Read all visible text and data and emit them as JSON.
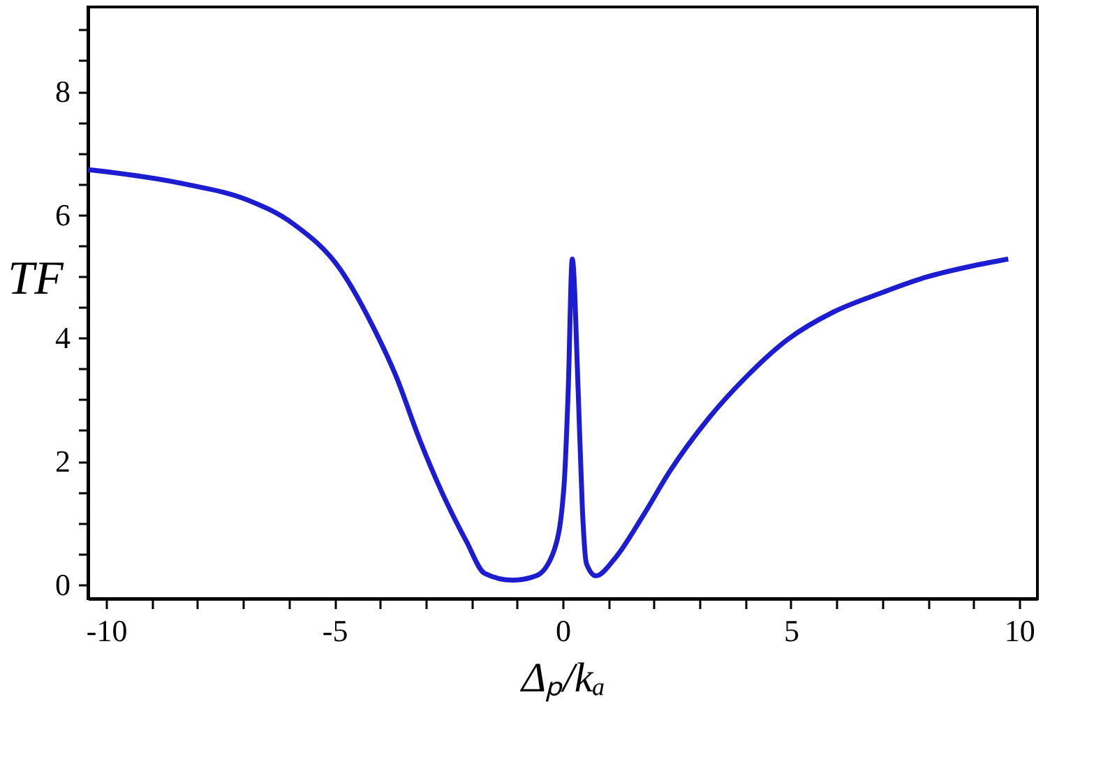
{
  "chart_data": {
    "type": "line",
    "xlabel": "Δₚ/kₐ",
    "ylabel": "TF",
    "xlim": [
      -10.4,
      10.4
    ],
    "ylim": [
      -0.23,
      9.37
    ],
    "xticks": [
      -10,
      {
        "value": -9,
        "label": null
      },
      {
        "value": -8,
        "label": null
      },
      {
        "value": -7,
        "label": null
      },
      {
        "value": -6,
        "label": null
      },
      -5,
      {
        "value": -4,
        "label": null
      },
      {
        "value": -3,
        "label": null
      },
      {
        "value": -2,
        "label": null
      },
      {
        "value": -1,
        "label": null
      },
      0,
      {
        "value": 1,
        "label": null
      },
      {
        "value": 2,
        "label": null
      },
      {
        "value": 3,
        "label": null
      },
      {
        "value": 4,
        "label": null
      },
      5,
      {
        "value": 6,
        "label": null
      },
      {
        "value": 7,
        "label": null
      },
      {
        "value": 8,
        "label": null
      },
      {
        "value": 9,
        "label": null
      },
      10
    ],
    "yticks": [
      0,
      {
        "value": 0.5,
        "label": null
      },
      {
        "value": 1,
        "label": null
      },
      {
        "value": 1.5,
        "label": null
      },
      2,
      {
        "value": 2.5,
        "label": null
      },
      {
        "value": 3,
        "label": null
      },
      {
        "value": 3.5,
        "label": null
      },
      4,
      {
        "value": 4.5,
        "label": null
      },
      {
        "value": 5,
        "label": null
      },
      {
        "value": 5.5,
        "label": null
      },
      6,
      {
        "value": 6.5,
        "label": null
      },
      {
        "value": 7,
        "label": null
      },
      {
        "value": 7.5,
        "label": null
      },
      8,
      {
        "value": 8.5,
        "label": null
      },
      {
        "value": 9,
        "label": null
      }
    ],
    "grid": false,
    "marker": "none",
    "line_style": "solid",
    "series": [
      {
        "color": "#1c1cd0",
        "x": [
          -10.4,
          -10.28,
          -8.23,
          -6.91,
          -5.9,
          -4.86,
          -4.16,
          -3.64,
          -3.15,
          -2.63,
          -2.11,
          -1.71,
          -1.1,
          -0.58,
          -0.18,
          0.03,
          0.12,
          0.21,
          0.34,
          0.43,
          0.52,
          0.73,
          1.13,
          1.74,
          2.35,
          3.18,
          4.01,
          4.92,
          5.93,
          6.94,
          7.98,
          8.99,
          9.76
        ],
        "values": [
          6.73,
          6.72,
          6.49,
          6.24,
          5.85,
          5.1,
          4.19,
          3.36,
          2.38,
          1.47,
          0.7,
          0.18,
          0.07,
          0.14,
          0.57,
          1.61,
          3.13,
          5.28,
          3.13,
          1.25,
          0.34,
          0.14,
          0.41,
          1.09,
          1.84,
          2.68,
          3.36,
          3.97,
          4.42,
          4.72,
          4.99,
          5.17,
          5.28
        ]
      }
    ]
  }
}
